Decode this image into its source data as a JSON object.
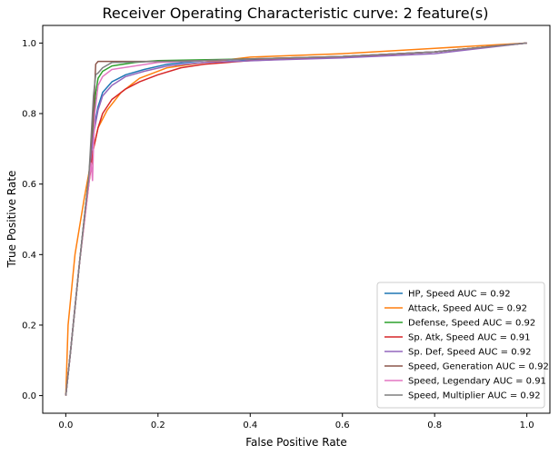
{
  "chart_data": {
    "type": "line",
    "title": "Receiver Operating Characteristic curve: 2 feature(s)",
    "xlabel": "False Positive Rate",
    "ylabel": "True Positive Rate",
    "xlim": [
      -0.05,
      1.05
    ],
    "ylim": [
      -0.05,
      1.05
    ],
    "xticks": [
      "0.0",
      "0.2",
      "0.4",
      "0.6",
      "0.8",
      "1.0"
    ],
    "yticks": [
      "0.0",
      "0.2",
      "0.4",
      "0.6",
      "0.8",
      "1.0"
    ],
    "grid": false,
    "legend_position": "lower-right",
    "series": [
      {
        "name": "HP, Speed AUC = 0.92",
        "color": "#1f77b4",
        "x": [
          0,
          0.01,
          0.03,
          0.05,
          0.06,
          0.07,
          0.08,
          0.1,
          0.13,
          0.17,
          0.22,
          0.3,
          0.45,
          0.6,
          0.8,
          1.0
        ],
        "y": [
          0,
          0.12,
          0.38,
          0.62,
          0.75,
          0.82,
          0.86,
          0.89,
          0.91,
          0.925,
          0.94,
          0.95,
          0.955,
          0.962,
          0.975,
          1.0
        ]
      },
      {
        "name": "Attack, Speed AUC = 0.92",
        "color": "#ff7f0e",
        "x": [
          0,
          0.005,
          0.02,
          0.04,
          0.05,
          0.06,
          0.07,
          0.09,
          0.12,
          0.16,
          0.22,
          0.3,
          0.4,
          0.6,
          0.8,
          1.0
        ],
        "y": [
          0,
          0.2,
          0.4,
          0.56,
          0.63,
          0.7,
          0.76,
          0.81,
          0.86,
          0.9,
          0.93,
          0.945,
          0.96,
          0.97,
          0.985,
          1.0
        ]
      },
      {
        "name": "Defense, Speed AUC = 0.92",
        "color": "#2ca02c",
        "x": [
          0,
          0.01,
          0.03,
          0.05,
          0.06,
          0.065,
          0.07,
          0.08,
          0.1,
          0.15,
          0.2,
          0.4,
          0.6,
          0.8,
          1.0
        ],
        "y": [
          0,
          0.12,
          0.38,
          0.62,
          0.78,
          0.86,
          0.9,
          0.92,
          0.935,
          0.945,
          0.95,
          0.955,
          0.962,
          0.975,
          1.0
        ]
      },
      {
        "name": "Sp. Atk, Speed AUC = 0.91",
        "color": "#d62728",
        "x": [
          0,
          0.01,
          0.03,
          0.05,
          0.06,
          0.07,
          0.08,
          0.1,
          0.13,
          0.16,
          0.2,
          0.25,
          0.3,
          0.4,
          0.6,
          0.8,
          1.0
        ],
        "y": [
          0,
          0.12,
          0.38,
          0.6,
          0.7,
          0.76,
          0.8,
          0.84,
          0.87,
          0.89,
          0.91,
          0.93,
          0.94,
          0.95,
          0.96,
          0.975,
          1.0
        ]
      },
      {
        "name": "Sp. Def, Speed AUC = 0.92",
        "color": "#9467bd",
        "x": [
          0,
          0.01,
          0.03,
          0.05,
          0.06,
          0.07,
          0.08,
          0.1,
          0.13,
          0.17,
          0.22,
          0.3,
          0.45,
          0.6,
          0.8,
          1.0
        ],
        "y": [
          0,
          0.12,
          0.38,
          0.62,
          0.74,
          0.81,
          0.85,
          0.88,
          0.905,
          0.92,
          0.935,
          0.945,
          0.952,
          0.958,
          0.97,
          1.0
        ]
      },
      {
        "name": "Speed, Generation AUC = 0.92",
        "color": "#8c564b",
        "x": [
          0,
          0.01,
          0.03,
          0.05,
          0.06,
          0.065,
          0.07,
          0.1,
          0.2,
          0.3,
          0.4,
          0.6,
          0.8,
          1.0
        ],
        "y": [
          0,
          0.12,
          0.38,
          0.62,
          0.8,
          0.94,
          0.948,
          0.948,
          0.948,
          0.95,
          0.955,
          0.962,
          0.975,
          1.0
        ]
      },
      {
        "name": "Speed, Legendary AUC = 0.91",
        "color": "#e377c2",
        "x": [
          0,
          0.01,
          0.03,
          0.05,
          0.055,
          0.058,
          0.06,
          0.063,
          0.07,
          0.08,
          0.1,
          0.2,
          0.4,
          0.6,
          0.8,
          1.0
        ],
        "y": [
          0,
          0.12,
          0.38,
          0.6,
          0.66,
          0.61,
          0.7,
          0.8,
          0.88,
          0.905,
          0.925,
          0.945,
          0.955,
          0.962,
          0.975,
          1.0
        ]
      },
      {
        "name": "Speed, Multiplier AUC = 0.92",
        "color": "#7f7f7f",
        "x": [
          0,
          0.01,
          0.03,
          0.05,
          0.06,
          0.065,
          0.07,
          0.08,
          0.1,
          0.2,
          0.3,
          0.4,
          0.6,
          0.8,
          1.0
        ],
        "y": [
          0,
          0.12,
          0.38,
          0.62,
          0.85,
          0.91,
          0.915,
          0.93,
          0.945,
          0.948,
          0.95,
          0.955,
          0.962,
          0.975,
          1.0
        ]
      }
    ]
  }
}
